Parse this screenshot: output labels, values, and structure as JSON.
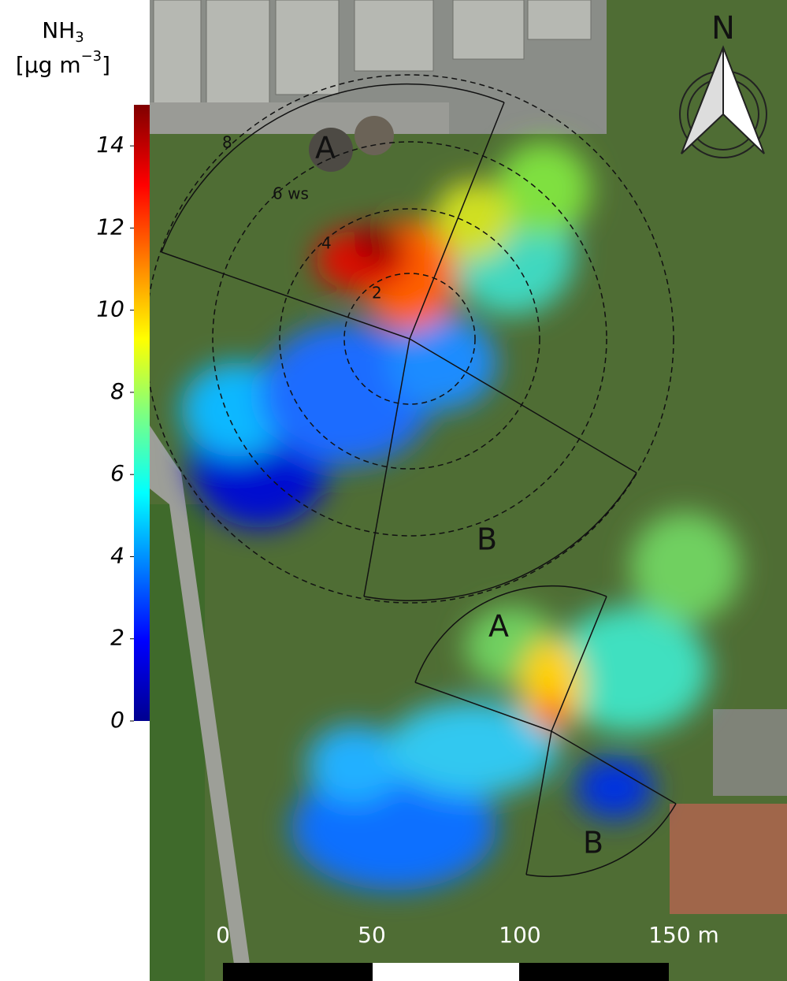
{
  "colorbar": {
    "title": "NH",
    "title_sub": "3",
    "unit_open": "[μg m",
    "unit_sup": "−3",
    "unit_close": "]",
    "lim": [
      0,
      15
    ],
    "ticks": [
      0,
      2,
      4,
      6,
      8,
      10,
      12,
      14
    ]
  },
  "north": "N",
  "plume_1": {
    "sector_a": "A",
    "sector_b": "B",
    "ring_labels": [
      "8",
      "6 ws",
      "4",
      "2"
    ]
  },
  "plume_2": {
    "sector_a": "A",
    "sector_b": "B"
  },
  "scale_bar": {
    "labels": [
      "0",
      "50",
      "100",
      "150 m"
    ]
  }
}
